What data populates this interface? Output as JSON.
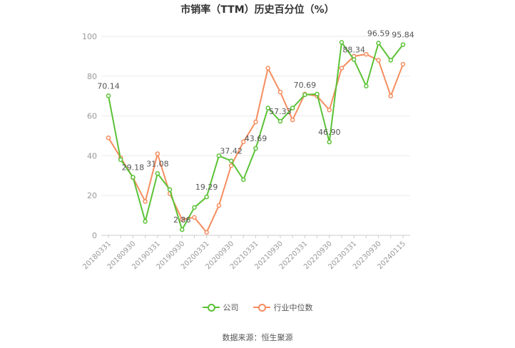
{
  "chart_data": {
    "type": "line",
    "title": "市销率（TTM）历史百分位（%）",
    "x": [
      "20180331",
      "20180630",
      "20180930",
      "20181231",
      "20190331",
      "20190630",
      "20190930",
      "20191231",
      "20200331",
      "20200630",
      "20200930",
      "20201231",
      "20210331",
      "20210630",
      "20210930",
      "20211231",
      "20220331",
      "20220630",
      "20220930",
      "20221231",
      "20230331",
      "20230630",
      "20230930",
      "20231231",
      "20240115"
    ],
    "x_tick_labels": [
      "20180331",
      "20180930",
      "20190331",
      "20190930",
      "20200331",
      "20200930",
      "20210331",
      "20210930",
      "20220331",
      "20220930",
      "20230331",
      "20230930",
      "20240115"
    ],
    "series": [
      {
        "name": "公司",
        "color": "#5bc236",
        "values": [
          70.14,
          38,
          29.18,
          7,
          31.08,
          23,
          2.86,
          14,
          19.29,
          40,
          37.42,
          28,
          43.69,
          64,
          57.33,
          64,
          70.69,
          71,
          46.9,
          97,
          88.34,
          75,
          96.59,
          88,
          95.84
        ],
        "labels": {
          "0": "70.14",
          "2": "29.18",
          "4": "31.08",
          "6": "2.86",
          "8": "19.29",
          "10": "37.42",
          "12": "43.69",
          "14": "57.33",
          "16": "70.69",
          "18": "46.90",
          "20": "88.34",
          "22": "96.59",
          "24": "95.84"
        }
      },
      {
        "name": "行业中位数",
        "color": "#f58d5f",
        "values": [
          49,
          39,
          29,
          17,
          41,
          21,
          8,
          9,
          1.5,
          15,
          35,
          47,
          57,
          84,
          72,
          58,
          71,
          70,
          63,
          84,
          90,
          91,
          88,
          70,
          86
        ]
      }
    ],
    "ylim": [
      0,
      100
    ],
    "yticks": [
      0,
      20,
      40,
      60,
      80,
      100
    ],
    "grid": true,
    "legend_position": "bottom"
  },
  "source_text": "数据来源：恒生聚源"
}
